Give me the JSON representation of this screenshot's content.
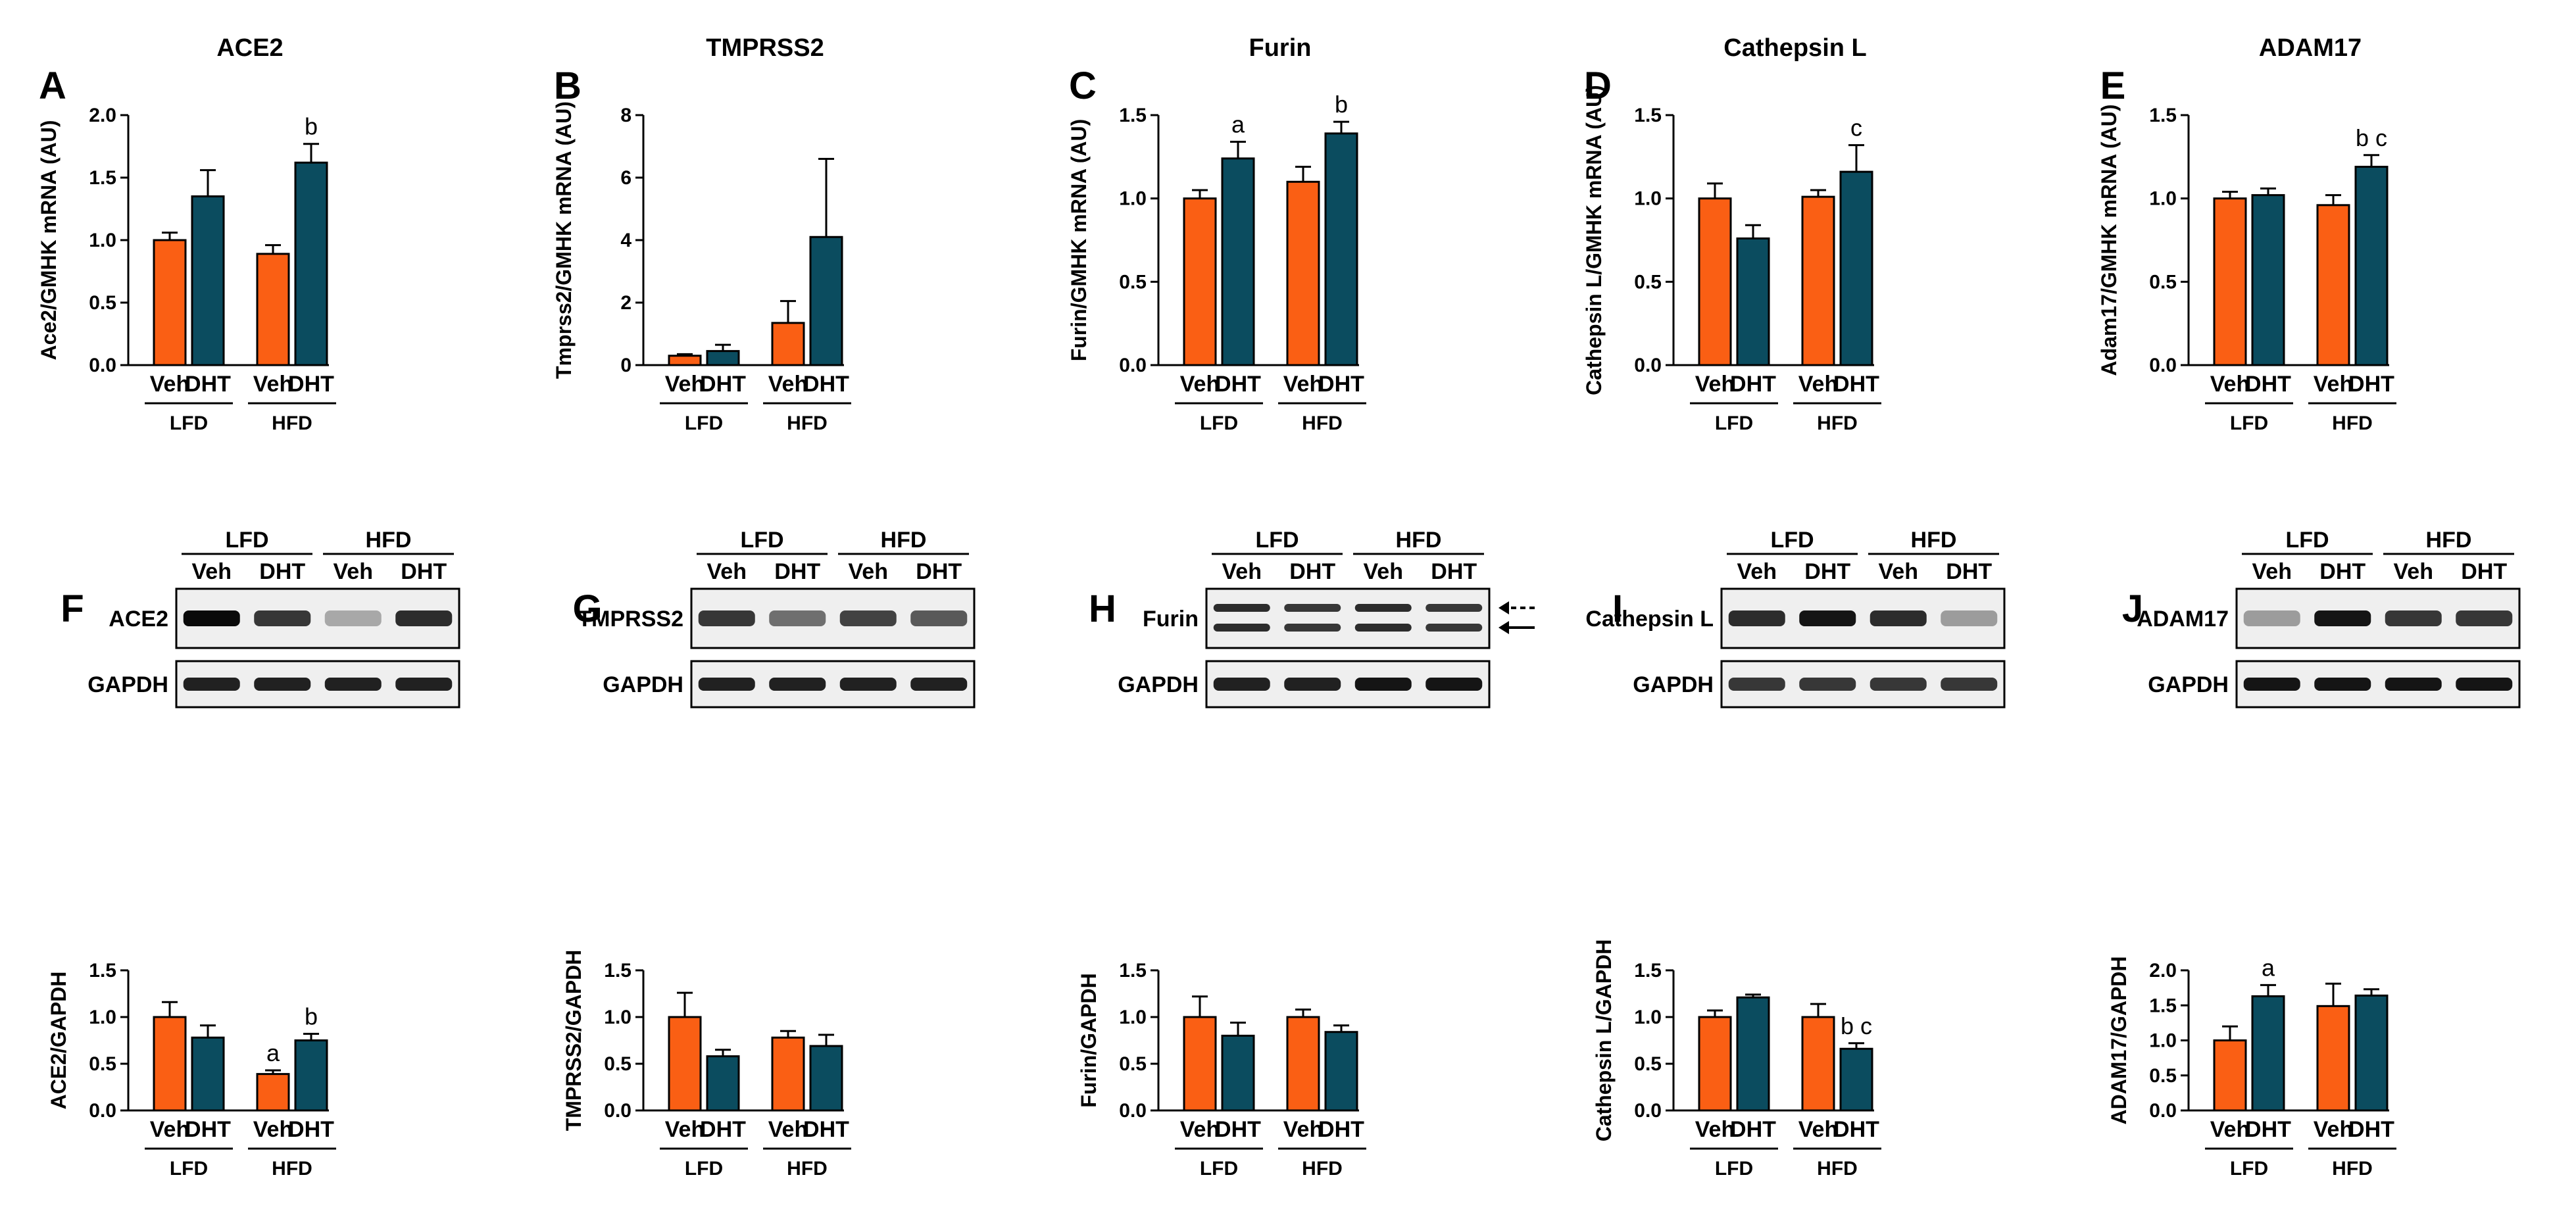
{
  "colors": {
    "veh": "#fa5f14",
    "dht": "#0b4c5f",
    "axis": "#000000"
  },
  "chart_data": [
    {
      "id": "A",
      "type": "bar",
      "letter": "A",
      "title": "ACE2",
      "ylabel": "Ace2/GMHK mRNA (AU)",
      "ylim": [
        0,
        2.0
      ],
      "yticks": [
        "0.0",
        "0.5",
        "1.0",
        "1.5",
        "2.0"
      ],
      "categories": [
        "Veh",
        "DHT",
        "Veh",
        "DHT"
      ],
      "groups": [
        "LFD",
        "HFD"
      ],
      "values": [
        1.0,
        1.35,
        0.89,
        1.62
      ],
      "errors": [
        0.06,
        0.21,
        0.07,
        0.15
      ],
      "annotations": [
        "",
        "",
        "",
        "b"
      ]
    },
    {
      "id": "B",
      "type": "bar",
      "letter": "B",
      "title": "TMPRSS2",
      "ylabel": "Tmprss2/GMHK mRNA (AU)",
      "ylim": [
        0,
        8
      ],
      "yticks": [
        "0",
        "2",
        "4",
        "6",
        "8"
      ],
      "categories": [
        "Veh",
        "DHT",
        "Veh",
        "DHT"
      ],
      "groups": [
        "LFD",
        "HFD"
      ],
      "values": [
        0.3,
        0.45,
        1.35,
        4.1
      ],
      "errors": [
        0.05,
        0.2,
        0.7,
        2.5
      ],
      "annotations": [
        "",
        "",
        "",
        ""
      ]
    },
    {
      "id": "C",
      "type": "bar",
      "letter": "C",
      "title": "Furin",
      "ylabel": "Furin/GMHK mRNA (AU)",
      "ylim": [
        0,
        1.5
      ],
      "yticks": [
        "0.0",
        "0.5",
        "1.0",
        "1.5"
      ],
      "categories": [
        "Veh",
        "DHT",
        "Veh",
        "DHT"
      ],
      "groups": [
        "LFD",
        "HFD"
      ],
      "values": [
        1.0,
        1.24,
        1.1,
        1.39
      ],
      "errors": [
        0.05,
        0.1,
        0.09,
        0.07
      ],
      "annotations": [
        "",
        "a",
        "",
        "b"
      ]
    },
    {
      "id": "D",
      "type": "bar",
      "letter": "D",
      "title": "Cathepsin L",
      "ylabel": "Cathepsin L/GMHK mRNA (AU)",
      "ylim": [
        0,
        1.5
      ],
      "yticks": [
        "0.0",
        "0.5",
        "1.0",
        "1.5"
      ],
      "categories": [
        "Veh",
        "DHT",
        "Veh",
        "DHT"
      ],
      "groups": [
        "LFD",
        "HFD"
      ],
      "values": [
        1.0,
        0.76,
        1.01,
        1.16
      ],
      "errors": [
        0.09,
        0.08,
        0.04,
        0.16
      ],
      "annotations": [
        "",
        "",
        "",
        "c"
      ]
    },
    {
      "id": "E",
      "type": "bar",
      "letter": "E",
      "title": "ADAM17",
      "ylabel": "Adam17/GMHK mRNA (AU)",
      "ylim": [
        0,
        1.5
      ],
      "yticks": [
        "0.0",
        "0.5",
        "1.0",
        "1.5"
      ],
      "categories": [
        "Veh",
        "DHT",
        "Veh",
        "DHT"
      ],
      "groups": [
        "LFD",
        "HFD"
      ],
      "values": [
        1.0,
        1.02,
        0.96,
        1.19
      ],
      "errors": [
        0.04,
        0.04,
        0.06,
        0.07
      ],
      "annotations": [
        "",
        "",
        "",
        "b c"
      ]
    },
    {
      "id": "F",
      "type": "bar",
      "letter": "F",
      "title": "",
      "ylabel": "ACE2/GAPDH",
      "ylim": [
        0,
        1.5
      ],
      "yticks": [
        "0.0",
        "0.5",
        "1.0",
        "1.5"
      ],
      "categories": [
        "Veh",
        "DHT",
        "Veh",
        "DHT"
      ],
      "groups": [
        "LFD",
        "HFD"
      ],
      "values": [
        1.0,
        0.78,
        0.39,
        0.75
      ],
      "errors": [
        0.16,
        0.13,
        0.04,
        0.07
      ],
      "annotations": [
        "",
        "",
        "a",
        "b"
      ],
      "blot": {
        "groups": [
          "LFD",
          "HFD"
        ],
        "lanes": [
          "Veh",
          "DHT",
          "Veh",
          "DHT"
        ],
        "rows": [
          {
            "label": "ACE2",
            "intensities": [
              1.0,
              0.8,
              0.3,
              0.85
            ]
          },
          {
            "label": "GAPDH",
            "intensities": [
              0.9,
              0.9,
              0.9,
              0.9
            ]
          }
        ]
      }
    },
    {
      "id": "G",
      "type": "bar",
      "letter": "G",
      "title": "",
      "ylabel": "TMPRSS2/GAPDH",
      "ylim": [
        0,
        1.5
      ],
      "yticks": [
        "0.0",
        "0.5",
        "1.0",
        "1.5"
      ],
      "categories": [
        "Veh",
        "DHT",
        "Veh",
        "DHT"
      ],
      "groups": [
        "LFD",
        "HFD"
      ],
      "values": [
        1.0,
        0.58,
        0.78,
        0.69
      ],
      "errors": [
        0.26,
        0.07,
        0.07,
        0.12
      ],
      "annotations": [
        "",
        "",
        "",
        ""
      ],
      "blot": {
        "groups": [
          "LFD",
          "HFD"
        ],
        "lanes": [
          "Veh",
          "DHT",
          "Veh",
          "DHT"
        ],
        "rows": [
          {
            "label": "TMPRSS2",
            "intensities": [
              0.8,
              0.55,
              0.75,
              0.65
            ]
          },
          {
            "label": "GAPDH",
            "intensities": [
              0.9,
              0.9,
              0.9,
              0.9
            ]
          }
        ]
      }
    },
    {
      "id": "H",
      "type": "bar",
      "letter": "H",
      "title": "",
      "ylabel": "Furin/GAPDH",
      "ylim": [
        0,
        1.5
      ],
      "yticks": [
        "0.0",
        "0.5",
        "1.0",
        "1.5"
      ],
      "categories": [
        "Veh",
        "DHT",
        "Veh",
        "DHT"
      ],
      "groups": [
        "LFD",
        "HFD"
      ],
      "values": [
        1.0,
        0.8,
        1.0,
        0.84
      ],
      "errors": [
        0.22,
        0.14,
        0.08,
        0.07
      ],
      "annotations": [
        "",
        "",
        "",
        ""
      ],
      "blot": {
        "groups": [
          "LFD",
          "HFD"
        ],
        "lanes": [
          "Veh",
          "DHT",
          "Veh",
          "DHT"
        ],
        "double_band": true,
        "rows": [
          {
            "label": "Furin",
            "intensities": [
              0.85,
              0.8,
              0.85,
              0.8
            ]
          },
          {
            "label": "GAPDH",
            "intensities": [
              0.9,
              0.9,
              0.95,
              0.95
            ]
          }
        ]
      }
    },
    {
      "id": "I",
      "type": "bar",
      "letter": "I",
      "title": "",
      "ylabel": "Cathepsin L/GAPDH",
      "ylim": [
        0,
        1.5
      ],
      "yticks": [
        "0.0",
        "0.5",
        "1.0",
        "1.5"
      ],
      "categories": [
        "Veh",
        "DHT",
        "Veh",
        "DHT"
      ],
      "groups": [
        "LFD",
        "HFD"
      ],
      "values": [
        1.0,
        1.21,
        1.0,
        0.66
      ],
      "errors": [
        0.07,
        0.03,
        0.14,
        0.06
      ],
      "annotations": [
        "",
        "",
        "",
        "b c"
      ],
      "blot": {
        "groups": [
          "LFD",
          "HFD"
        ],
        "lanes": [
          "Veh",
          "DHT",
          "Veh",
          "DHT"
        ],
        "rows": [
          {
            "label": "Cathepsin L",
            "intensities": [
              0.85,
              0.95,
              0.85,
              0.35
            ]
          },
          {
            "label": "GAPDH",
            "intensities": [
              0.8,
              0.8,
              0.8,
              0.8
            ]
          }
        ]
      }
    },
    {
      "id": "J",
      "type": "bar",
      "letter": "J",
      "title": "",
      "ylabel": "ADAM17/GAPDH",
      "ylim": [
        0,
        2.0
      ],
      "yticks": [
        "0.0",
        "0.5",
        "1.0",
        "1.5",
        "2.0"
      ],
      "categories": [
        "Veh",
        "DHT",
        "Veh",
        "DHT"
      ],
      "groups": [
        "LFD",
        "HFD"
      ],
      "values": [
        1.0,
        1.63,
        1.49,
        1.64
      ],
      "errors": [
        0.2,
        0.16,
        0.32,
        0.09
      ],
      "annotations": [
        "",
        "a",
        "",
        ""
      ],
      "blot": {
        "groups": [
          "LFD",
          "HFD"
        ],
        "lanes": [
          "Veh",
          "DHT",
          "Veh",
          "DHT"
        ],
        "rows": [
          {
            "label": "ADAM17",
            "intensities": [
              0.35,
              0.95,
              0.8,
              0.8
            ]
          },
          {
            "label": "GAPDH",
            "intensities": [
              0.95,
              0.95,
              0.95,
              0.95
            ]
          }
        ]
      }
    }
  ]
}
